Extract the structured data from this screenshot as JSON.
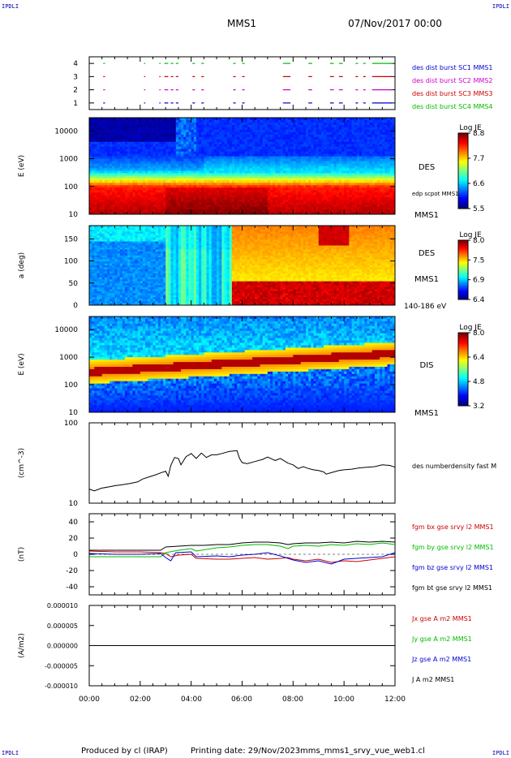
{
  "header": {
    "corner_label": "IPDLI",
    "spacecraft": "MMS1",
    "date": "07/Nov/2017 00:00"
  },
  "footer": {
    "produced_by": "Produced by cl (IRAP)",
    "printing_date": "Printing date: 29/Nov/2023",
    "filename": "mms_mms1_srvy_vue_web1.cl"
  },
  "x_axis": {
    "range_hours": [
      0,
      12
    ],
    "tick_labels": [
      "00:00",
      "02:00",
      "04:00",
      "06:00",
      "08:00",
      "10:00",
      "12:00"
    ]
  },
  "colors": {
    "mms1": "#0000cc",
    "mms2": "#cc00cc",
    "mms3": "#cc0000",
    "mms4": "#00bb00",
    "bt": "#000000"
  },
  "chart_data": [
    {
      "type": "scatter",
      "panel": "burst",
      "ylim": [
        0.5,
        4.5
      ],
      "y_ticks": [
        "1",
        "2",
        "3",
        "4"
      ],
      "legend": [
        {
          "name": "des dist burst SC1 MMS1",
          "color": "#0000cc"
        },
        {
          "name": "des dist burst SC2 MMS2",
          "color": "#cc00cc"
        },
        {
          "name": "des dist burst SC3 MMS3",
          "color": "#cc0000"
        },
        {
          "name": "des dist burst SC4 MMS4",
          "color": "#00bb00"
        }
      ],
      "burst_segments_hours": [
        [
          0.55,
          0.62
        ],
        [
          2.15,
          2.2
        ],
        [
          2.75,
          2.8
        ],
        [
          2.95,
          3.1
        ],
        [
          3.2,
          3.3
        ],
        [
          3.4,
          3.5
        ],
        [
          4.05,
          4.15
        ],
        [
          4.4,
          4.5
        ],
        [
          5.65,
          5.75
        ],
        [
          6.0,
          6.1
        ],
        [
          7.6,
          7.9
        ],
        [
          8.6,
          8.75
        ],
        [
          9.45,
          9.6
        ],
        [
          9.8,
          9.95
        ],
        [
          10.45,
          10.55
        ],
        [
          10.75,
          10.85
        ],
        [
          11.1,
          11.9
        ]
      ]
    },
    {
      "type": "heatmap",
      "panel": "des_energy",
      "ylabel": "E (eV)",
      "y_scale": "log",
      "ylim": [
        10,
        30000
      ],
      "y_ticks": [
        "10",
        "100",
        "1000",
        "10000"
      ],
      "instrument": "DES",
      "spacecraft_label": "MMS1",
      "overlay_label": "edp scpot MMS1",
      "colorbar": {
        "title": "Log JE",
        "ticks": [
          "8.8",
          "7.7",
          "6.6",
          "5.5"
        ],
        "range": [
          5.5,
          8.8
        ]
      }
    },
    {
      "type": "heatmap",
      "panel": "des_pitch",
      "ylabel": "a (deg)",
      "ylim": [
        0,
        180
      ],
      "y_ticks": [
        "0",
        "50",
        "100",
        "150"
      ],
      "instrument": "DES",
      "spacecraft_label": "MMS1",
      "energy_range": "140-186 eV",
      "colorbar": {
        "title": "Log JE",
        "ticks": [
          "8.0",
          "7.5",
          "6.9",
          "6.4"
        ],
        "range": [
          6.4,
          8.0
        ]
      }
    },
    {
      "type": "heatmap",
      "panel": "dis_energy",
      "ylabel": "E (eV)",
      "y_scale": "log",
      "ylim": [
        10,
        30000
      ],
      "y_ticks": [
        "10",
        "100",
        "1000",
        "10000"
      ],
      "instrument": "DIS",
      "spacecraft_label": "MMS1",
      "colorbar": {
        "title": "Log JE",
        "ticks": [
          "8.0",
          "6.4",
          "4.8",
          "3.2"
        ],
        "range": [
          3.2,
          8.0
        ]
      }
    },
    {
      "type": "line",
      "panel": "density",
      "ylabel": "(cm^-3)",
      "y_scale": "log",
      "ylim": [
        10,
        100
      ],
      "y_ticks": [
        "10",
        "100"
      ],
      "series": [
        {
          "name": "des numberdensity fast M",
          "color": "#000000",
          "x": [
            0.0,
            0.2,
            0.5,
            0.8,
            1.0,
            1.3,
            1.6,
            1.9,
            2.1,
            2.4,
            2.6,
            2.8,
            3.0,
            3.1,
            3.2,
            3.35,
            3.5,
            3.6,
            3.8,
            3.95,
            4.0,
            4.2,
            4.4,
            4.6,
            4.8,
            5.0,
            5.2,
            5.5,
            5.8,
            5.9,
            6.0,
            6.2,
            6.5,
            6.8,
            7.0,
            7.3,
            7.5,
            7.8,
            8.0,
            8.2,
            8.4,
            8.6,
            8.8,
            9.0,
            9.2,
            9.3,
            9.5,
            9.8,
            10.0,
            10.3,
            10.6,
            10.9,
            11.2,
            11.5,
            11.8,
            12.0
          ],
          "y": [
            15.0,
            14.2,
            15.4,
            16.0,
            16.5,
            17.0,
            17.6,
            18.4,
            20.0,
            21.5,
            22.5,
            23.8,
            25.0,
            21.6,
            29.5,
            37.0,
            36.0,
            30.0,
            38.0,
            40.5,
            41.5,
            36.0,
            42.0,
            37.0,
            40.0,
            40.0,
            41.5,
            44.0,
            45.0,
            36.0,
            32.0,
            31.0,
            33.0,
            35.0,
            37.5,
            34.0,
            36.0,
            31.5,
            30.0,
            27.0,
            28.5,
            27.0,
            26.0,
            25.5,
            24.5,
            23.0,
            24.0,
            25.5,
            26.0,
            26.5,
            27.5,
            28.0,
            28.5,
            30.0,
            29.5,
            28.0
          ]
        }
      ]
    },
    {
      "type": "line",
      "panel": "magnetic_field",
      "ylabel": "(nT)",
      "ylim": [
        -50,
        50
      ],
      "y_ticks": [
        "-40",
        "-20",
        "0",
        "20",
        "40"
      ],
      "series": [
        {
          "name": "fgm bx gse srvy l2 MMS1",
          "color": "#cc0000",
          "x": [
            0.0,
            1.0,
            2.0,
            2.8,
            3.0,
            3.2,
            3.5,
            4.0,
            4.2,
            5.0,
            5.5,
            6.0,
            6.5,
            7.0,
            7.5,
            7.8,
            8.0,
            8.5,
            9.0,
            9.5,
            10.0,
            10.5,
            11.0,
            11.5,
            12.0
          ],
          "y": [
            4,
            3,
            3,
            2,
            1,
            -3,
            -1,
            0,
            -5,
            -6,
            -6,
            -5,
            -4,
            -6,
            -5,
            -4,
            -6,
            -8,
            -6,
            -10,
            -8,
            -9,
            -7,
            -5,
            -3
          ]
        },
        {
          "name": "fgm by gse srvy l2 MMS1",
          "color": "#00bb00",
          "x": [
            0.0,
            1.0,
            2.0,
            2.8,
            3.0,
            3.5,
            4.0,
            4.2,
            5.0,
            5.5,
            6.0,
            6.5,
            7.0,
            7.5,
            7.8,
            8.0,
            8.5,
            9.0,
            9.5,
            10.0,
            10.5,
            11.0,
            11.5,
            12.0
          ],
          "y": [
            -3,
            -3,
            -3,
            -3,
            2,
            5,
            7,
            4,
            8,
            9,
            11,
            12,
            12,
            10,
            7,
            10,
            11,
            10,
            12,
            11,
            13,
            12,
            14,
            12
          ]
        },
        {
          "name": "fgm bz gse srvy l2 MMS1",
          "color": "#0000cc",
          "x": [
            0.0,
            1.0,
            2.0,
            2.8,
            3.0,
            3.2,
            3.4,
            4.0,
            4.2,
            5.0,
            5.5,
            6.0,
            6.5,
            7.0,
            7.5,
            7.8,
            8.0,
            8.5,
            9.0,
            9.5,
            10.0,
            10.5,
            11.0,
            11.5,
            12.0
          ],
          "y": [
            1,
            0,
            0,
            1,
            -4,
            -8,
            2,
            3,
            -3,
            -2,
            -3,
            -1,
            0,
            2,
            -2,
            -5,
            -7,
            -10,
            -8,
            -12,
            -6,
            -5,
            -4,
            -3,
            2
          ]
        },
        {
          "name": "fgm bt gse srvy l2 MMS1",
          "color": "#000000",
          "x": [
            0.0,
            1.0,
            2.0,
            2.8,
            3.0,
            3.5,
            4.0,
            4.5,
            5.0,
            5.5,
            6.0,
            6.5,
            7.0,
            7.5,
            7.8,
            8.0,
            8.5,
            9.0,
            9.5,
            10.0,
            10.5,
            11.0,
            11.5,
            12.0
          ],
          "y": [
            5,
            5,
            5,
            5,
            9,
            10,
            11,
            11,
            12,
            12,
            14,
            15,
            15,
            14,
            12,
            13,
            14,
            14,
            15,
            14,
            16,
            15,
            16,
            15
          ]
        }
      ]
    },
    {
      "type": "line",
      "panel": "current_density",
      "ylabel": "(A/m2)",
      "ylim": [
        -1e-05,
        1e-05
      ],
      "y_ticks": [
        "-0.000010",
        "-0.000005",
        "0.000000",
        "0.000005",
        "0.000010"
      ],
      "series": [
        {
          "name": "Jx gse A m2 MMS1",
          "color": "#cc0000",
          "x": [
            0,
            12
          ],
          "y": [
            0,
            0
          ]
        },
        {
          "name": "Jy gse A m2 MMS1",
          "color": "#00bb00",
          "x": [
            0,
            12
          ],
          "y": [
            0,
            0
          ]
        },
        {
          "name": "Jz gse A m2 MMS1",
          "color": "#0000cc",
          "x": [
            0,
            12
          ],
          "y": [
            0,
            0
          ]
        },
        {
          "name": "J A m2 MMS1",
          "color": "#000000",
          "x": [
            0,
            12
          ],
          "y": [
            0,
            0
          ]
        }
      ]
    }
  ]
}
